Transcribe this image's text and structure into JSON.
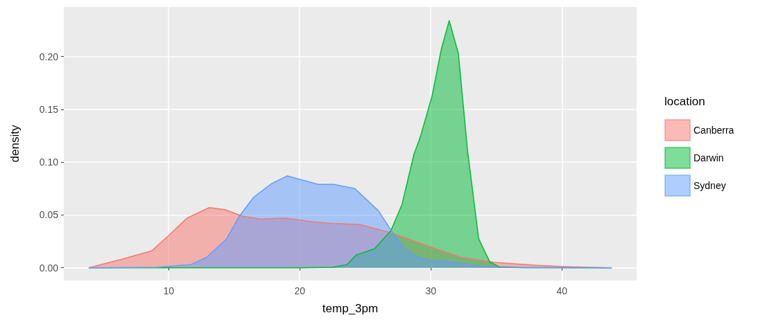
{
  "chart_data": {
    "type": "area",
    "xlabel": "temp_3pm",
    "ylabel": "density",
    "legend_title": "location",
    "legend": "right",
    "grid": true,
    "marker": "none",
    "line_style": "solid",
    "xlim": [
      2.0,
      45.7
    ],
    "xticks": [
      10,
      20,
      30,
      40
    ],
    "ylim": [
      -0.012,
      0.247
    ],
    "yticks": [
      {
        "value": 0,
        "label": "0.00"
      },
      {
        "value": 0.05,
        "label": "0.05"
      },
      {
        "value": 0.1,
        "label": "0.10"
      },
      {
        "value": 0.15,
        "label": "0.15"
      },
      {
        "value": 0.2,
        "label": "0.20"
      }
    ],
    "series": [
      {
        "name": "Canberra",
        "color": "#f8766d",
        "x": [
          3.9,
          6.4,
          8.7,
          9.95,
          11.4,
          13.1,
          14.3,
          15.6,
          17,
          18.9,
          21.4,
          22.5,
          24.6,
          27,
          29.7,
          32.3,
          34.9,
          37.9,
          40.5,
          43.8
        ],
        "values": [
          0,
          0.008,
          0.016,
          0.03,
          0.047,
          0.057,
          0.055,
          0.049,
          0.046,
          0.047,
          0.043,
          0.042,
          0.041,
          0.033,
          0.021,
          0.01,
          0.005,
          0.0025,
          0.001,
          0
        ]
      },
      {
        "name": "Darwin",
        "color": "#00ba38",
        "x": [
          3.9,
          20,
          22.5,
          23.6,
          24.3,
          25.7,
          26.95,
          27.8,
          28.7,
          29.2,
          30.1,
          30.8,
          31.4,
          32.1,
          32.8,
          33.65,
          34.5,
          35.2,
          37,
          43.8
        ],
        "values": [
          0,
          0,
          0.0005,
          0.003,
          0.012,
          0.018,
          0.035,
          0.06,
          0.107,
          0.124,
          0.163,
          0.207,
          0.234,
          0.203,
          0.111,
          0.0275,
          0.0055,
          0.001,
          0.0002,
          0
        ]
      },
      {
        "name": "Sydney",
        "color": "#619cff",
        "x": [
          3.9,
          9.1,
          11.7,
          12.9,
          14.4,
          15.4,
          16.5,
          17.9,
          19.05,
          21.4,
          22.6,
          24.2,
          26,
          27,
          28,
          29,
          30,
          31,
          32,
          33,
          34,
          35,
          37,
          43.8
        ],
        "values": [
          0,
          0.0004,
          0.003,
          0.01,
          0.027,
          0.049,
          0.067,
          0.08,
          0.087,
          0.079,
          0.079,
          0.075,
          0.054,
          0.035,
          0.018,
          0.01,
          0.0066,
          0.0066,
          0.005,
          0.003,
          0.0015,
          0.0005,
          0.0001,
          0
        ]
      }
    ]
  }
}
